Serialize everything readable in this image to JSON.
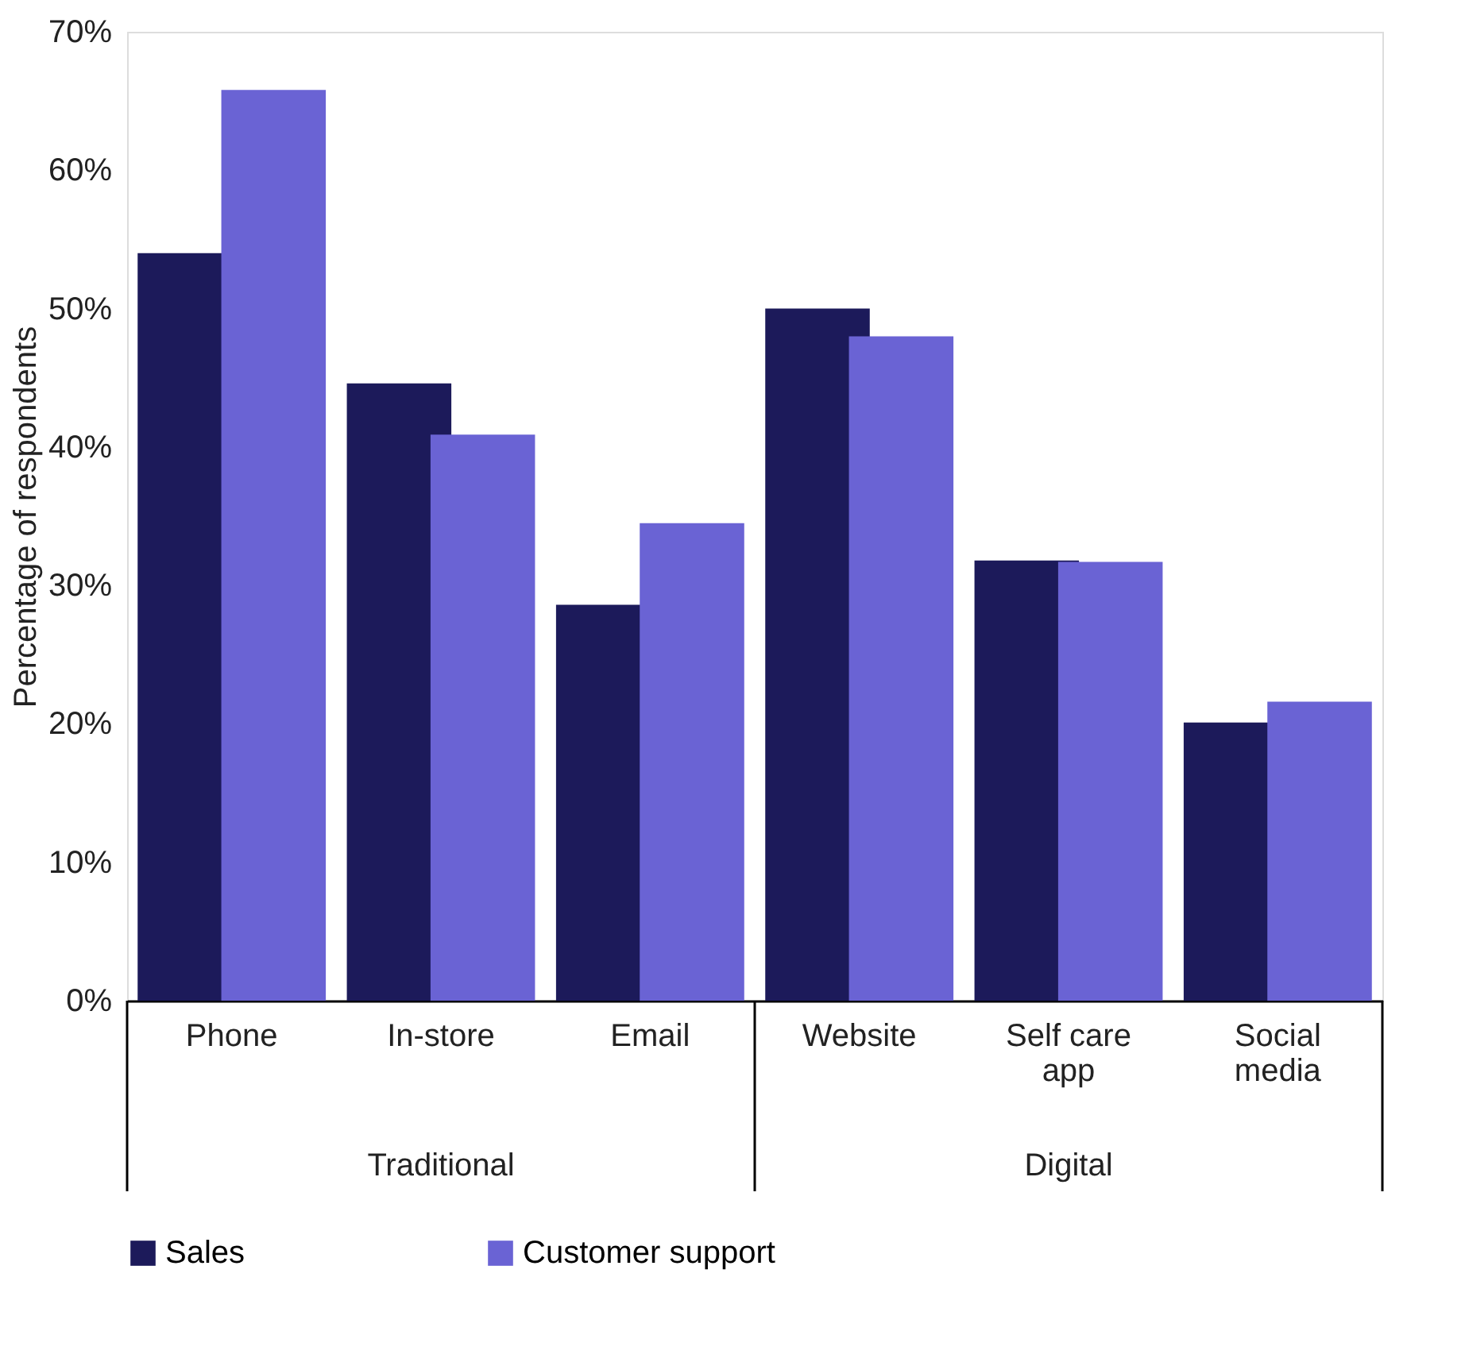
{
  "chart_data": {
    "type": "bar",
    "ylabel": "Percentage of respondents",
    "categories": [
      "Phone",
      "In-store",
      "Email",
      "Website",
      "Self care app",
      "Social media"
    ],
    "series": [
      {
        "name": "Sales",
        "color": "#1c1a5a",
        "values": [
          54,
          44.6,
          28.6,
          50,
          31.8,
          20.1
        ]
      },
      {
        "name": "Customer support",
        "color": "#6a63d4",
        "values": [
          65.8,
          40.9,
          34.5,
          48,
          31.7,
          21.6
        ]
      }
    ],
    "annotations": [
      "Traditional",
      "Digital"
    ],
    "ylim": [
      0,
      70
    ],
    "yticks": [
      {
        "value": 0,
        "label": "0%"
      },
      {
        "value": 10,
        "label": "10%"
      },
      {
        "value": 20,
        "label": "20%"
      },
      {
        "value": 30,
        "label": "30%"
      },
      {
        "value": 40,
        "label": "40%"
      },
      {
        "value": 50,
        "label": "50%"
      },
      {
        "value": 60,
        "label": "60%"
      },
      {
        "value": 70,
        "label": "70%"
      }
    ],
    "grid": false,
    "legend": "bottom"
  }
}
